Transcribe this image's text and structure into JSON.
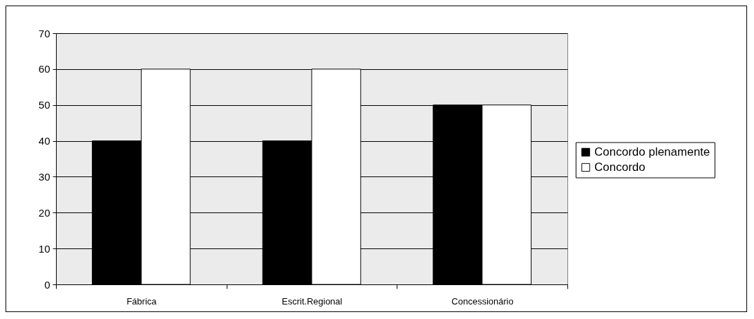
{
  "chart_data": {
    "type": "bar",
    "categories": [
      "Fábrica",
      "Escrit.Regional",
      "Concessionário"
    ],
    "series": [
      {
        "name": "Concordo plenamente",
        "color": "#000000",
        "values": [
          40,
          40,
          50
        ]
      },
      {
        "name": "Concordo",
        "color": "#ffffff",
        "values": [
          60,
          60,
          50
        ]
      }
    ],
    "ylim": [
      0,
      70
    ],
    "yticks": [
      0,
      10,
      20,
      30,
      40,
      50,
      60,
      70
    ],
    "grid": "y",
    "legend": "right"
  }
}
